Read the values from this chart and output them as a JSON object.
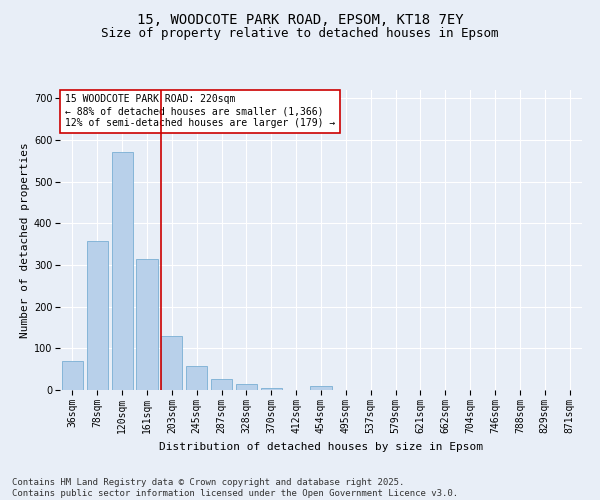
{
  "title_line1": "15, WOODCOTE PARK ROAD, EPSOM, KT18 7EY",
  "title_line2": "Size of property relative to detached houses in Epsom",
  "xlabel": "Distribution of detached houses by size in Epsom",
  "ylabel": "Number of detached properties",
  "categories": [
    "36sqm",
    "78sqm",
    "120sqm",
    "161sqm",
    "203sqm",
    "245sqm",
    "287sqm",
    "328sqm",
    "370sqm",
    "412sqm",
    "454sqm",
    "495sqm",
    "537sqm",
    "579sqm",
    "621sqm",
    "662sqm",
    "704sqm",
    "746sqm",
    "788sqm",
    "829sqm",
    "871sqm"
  ],
  "values": [
    70,
    358,
    572,
    315,
    130,
    57,
    27,
    14,
    5,
    0,
    9,
    0,
    0,
    0,
    0,
    0,
    0,
    0,
    0,
    0,
    0
  ],
  "bar_color": "#b8d0ea",
  "bar_edge_color": "#7aafd4",
  "vline_color": "#cc0000",
  "vline_index": 3.575,
  "annotation_text": "15 WOODCOTE PARK ROAD: 220sqm\n← 88% of detached houses are smaller (1,366)\n12% of semi-detached houses are larger (179) →",
  "annotation_box_color": "#ffffff",
  "annotation_box_edge": "#cc0000",
  "ylim": [
    0,
    720
  ],
  "yticks": [
    0,
    100,
    200,
    300,
    400,
    500,
    600,
    700
  ],
  "background_color": "#e8eef7",
  "grid_color": "#ffffff",
  "footer_text": "Contains HM Land Registry data © Crown copyright and database right 2025.\nContains public sector information licensed under the Open Government Licence v3.0.",
  "title_fontsize": 10,
  "subtitle_fontsize": 9,
  "axis_label_fontsize": 8,
  "tick_fontsize": 7,
  "annotation_fontsize": 7,
  "footer_fontsize": 6.5
}
